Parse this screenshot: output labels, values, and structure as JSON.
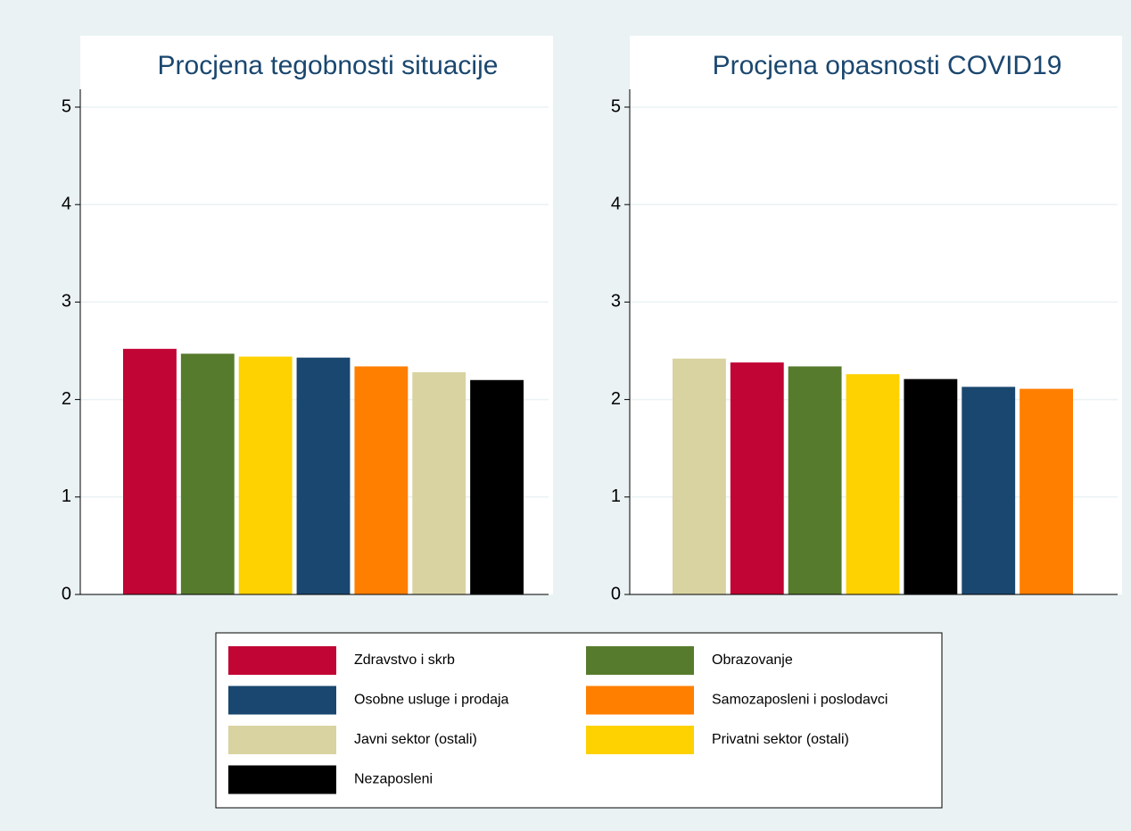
{
  "chart_data": [
    {
      "type": "bar",
      "title": "Procjena tegobnosti situacije",
      "ylim": [
        0,
        5
      ],
      "yticks": [
        0,
        1,
        2,
        3,
        4,
        5
      ],
      "grid": true,
      "series": [
        {
          "color": "#c10534",
          "values": [
            2.52
          ]
        },
        {
          "color": "#577b2d",
          "values": [
            2.47
          ]
        },
        {
          "color": "#fed100",
          "values": [
            2.44
          ]
        },
        {
          "color": "#1a476f",
          "values": [
            2.43
          ]
        },
        {
          "color": "#ff7f00",
          "values": [
            2.34
          ]
        },
        {
          "color": "#d9d3a1",
          "values": [
            2.28
          ]
        },
        {
          "color": "#000000",
          "values": [
            2.2
          ]
        }
      ]
    },
    {
      "type": "bar",
      "title": "Procjena opasnosti COVID19",
      "ylim": [
        0,
        5
      ],
      "yticks": [
        0,
        1,
        2,
        3,
        4,
        5
      ],
      "grid": true,
      "series": [
        {
          "color": "#d9d3a1",
          "values": [
            2.42
          ]
        },
        {
          "color": "#c10534",
          "values": [
            2.38
          ]
        },
        {
          "color": "#577b2d",
          "values": [
            2.34
          ]
        },
        {
          "color": "#fed100",
          "values": [
            2.26
          ]
        },
        {
          "color": "#000000",
          "values": [
            2.21
          ]
        },
        {
          "color": "#1a476f",
          "values": [
            2.13
          ]
        },
        {
          "color": "#ff7f00",
          "values": [
            2.11
          ]
        }
      ]
    }
  ],
  "legend": {
    "entries": [
      {
        "name": "Zdravstvo i skrb",
        "color": "#c10534"
      },
      {
        "name": "Obrazovanje",
        "color": "#577b2d"
      },
      {
        "name": "Osobne usluge i prodaja",
        "color": "#1a476f"
      },
      {
        "name": "Samozaposleni i poslodavci",
        "color": "#ff7f00"
      },
      {
        "name": "Javni sektor (ostali)",
        "color": "#d9d3a1"
      },
      {
        "name": "Privatni sektor (ostali)",
        "color": "#fed100"
      },
      {
        "name": "Nezaposleni",
        "color": "#000000"
      }
    ]
  }
}
